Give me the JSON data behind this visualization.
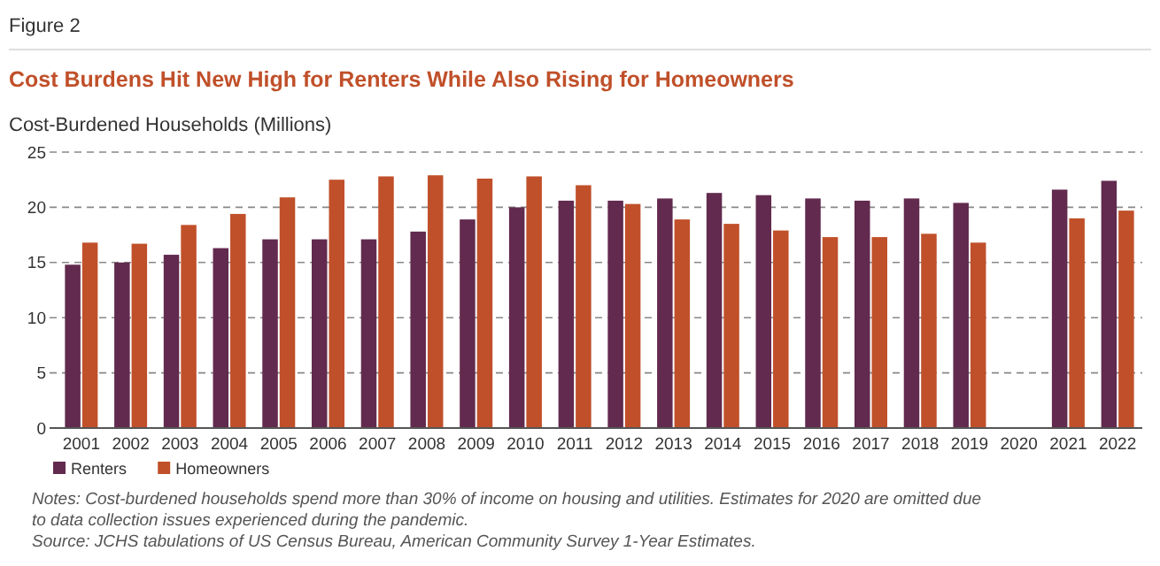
{
  "chart_data": {
    "type": "bar",
    "title": "Cost Burdens Hit New High for Renters While Also Rising for Homeowners",
    "ylabel": "Cost-Burdened Households (Millions)",
    "annotations": [
      "Figure 2",
      "Notes: Cost-burdened households spend more than 30% of income on housing and utilities. Estimates for 2020 are omitted due to data collection issues experienced during the pandemic.",
      "Source: JCHS tabulations of US Census Bureau, American Community Survey 1-Year Estimates."
    ],
    "categories": [
      "2001",
      "2002",
      "2003",
      "2004",
      "2005",
      "2006",
      "2007",
      "2008",
      "2009",
      "2010",
      "2011",
      "2012",
      "2013",
      "2014",
      "2015",
      "2016",
      "2017",
      "2018",
      "2019",
      "2020",
      "2021",
      "2022"
    ],
    "series": [
      {
        "name": "Renters",
        "color": "#622a4e",
        "values": [
          14.8,
          15.0,
          15.7,
          16.3,
          17.1,
          17.1,
          17.1,
          17.8,
          18.9,
          20.0,
          20.6,
          20.6,
          20.8,
          21.3,
          21.1,
          20.8,
          20.6,
          20.8,
          20.4,
          null,
          21.6,
          22.4
        ]
      },
      {
        "name": "Homeowners",
        "color": "#c0502a",
        "values": [
          16.8,
          16.7,
          18.4,
          19.4,
          20.9,
          22.5,
          22.8,
          22.9,
          22.6,
          22.8,
          22.0,
          20.3,
          18.9,
          18.5,
          17.9,
          17.3,
          17.3,
          17.6,
          16.8,
          null,
          19.0,
          19.7
        ]
      }
    ],
    "ylim": [
      0,
      25
    ],
    "yticks": [
      0,
      5,
      10,
      15,
      20,
      25
    ],
    "grid": "y",
    "legend": "bottom left"
  }
}
